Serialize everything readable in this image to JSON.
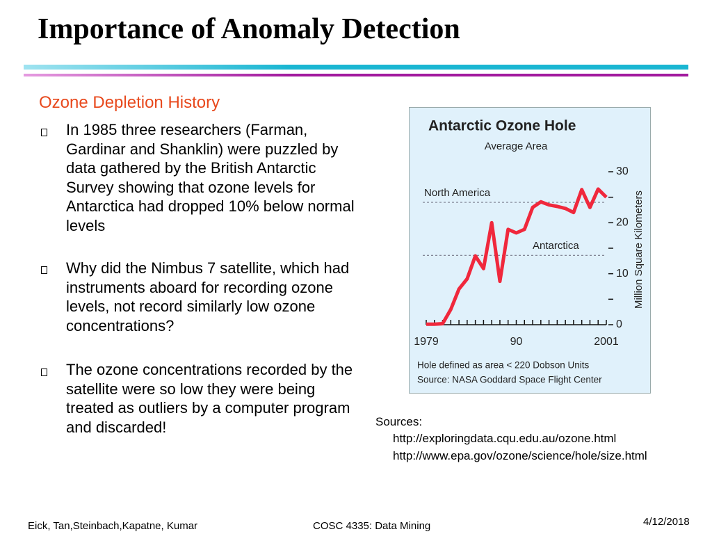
{
  "header": {
    "title": "Importance of Anomaly Detection"
  },
  "body": {
    "subtitle": "Ozone Depletion History",
    "bullets": [
      "In 1985 three researchers (Farman, Gardinar and Shanklin) were puzzled by data gathered by the British Antarctic Survey showing that ozone levels for Antarctica had dropped 10% below normal levels",
      "Why did the Nimbus 7 satellite, which had instruments aboard for recording ozone levels, not record similarly low ozone concentrations?",
      "The ozone concentrations recorded by the satellite were so low they were being treated as outliers by a computer program and discarded!"
    ]
  },
  "sources": {
    "label": "Sources:",
    "links": [
      "http://exploringdata.cqu.edu.au/ozone.html",
      "http://www.epa.gov/ozone/science/hole/size.html"
    ]
  },
  "footer": {
    "authors": "Eick, Tan,Steinbach,Kapatne, Kumar",
    "course": "COSC 4335: Data Mining",
    "date": "4/12/2018"
  },
  "chart_data": {
    "type": "line",
    "title": "Antarctic Ozone Hole",
    "subtitle": "Average Area",
    "y_label": "Million Square Kilometers",
    "x": [
      1979,
      1980,
      1981,
      1982,
      1983,
      1984,
      1985,
      1986,
      1987,
      1988,
      1989,
      1990,
      1991,
      1992,
      1993,
      1994,
      1995,
      1996,
      1997,
      1998,
      1999,
      2000,
      2001
    ],
    "series": [
      {
        "name": "Antarctica",
        "color": "#f0283c",
        "values": [
          0.1,
          0.1,
          0.2,
          3,
          7,
          9,
          13.5,
          11,
          20,
          8.5,
          18.7,
          18,
          18.7,
          23,
          24.1,
          23.5,
          23.2,
          22.8,
          22,
          26.5,
          23,
          26.6,
          25
        ]
      }
    ],
    "xlim": [
      1979,
      2001
    ],
    "xticks": [
      1979,
      {
        "value": 1990,
        "label": "90"
      },
      2001
    ],
    "ylim": [
      0,
      30
    ],
    "yticks": [
      0,
      10,
      20,
      30
    ],
    "minor_yticks": [
      5,
      15,
      25
    ],
    "reference_lines": [
      {
        "label": "North America",
        "value": 24
      },
      {
        "label": "Antarctica",
        "value": 13.6
      }
    ],
    "notes": [
      "Hole defined as area < 220 Dobson Units",
      "Source:  NASA Goddard Space Flight Center"
    ]
  }
}
